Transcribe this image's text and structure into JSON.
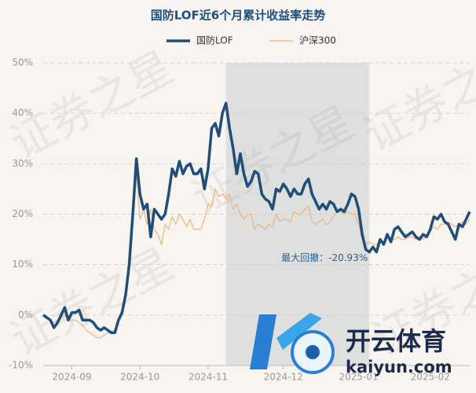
{
  "chart_data": {
    "type": "line",
    "title": "国防LOF近6个月累计收益率走势",
    "watermark": "证券之星",
    "logo_text": "开云体育",
    "logo_domain": "kaiyun.com",
    "annotation": "最大回撤：-20.93%",
    "categories": [
      null,
      null,
      null,
      null,
      null,
      null,
      null,
      null,
      "2024-09",
      null,
      null,
      null,
      null,
      null,
      null,
      null,
      null,
      null,
      null,
      null,
      null,
      null,
      null,
      null,
      null,
      null,
      null,
      "2024-10",
      null,
      null,
      null,
      null,
      null,
      null,
      null,
      null,
      null,
      null,
      null,
      null,
      null,
      null,
      null,
      null,
      null,
      null,
      "2024-11",
      null,
      null,
      null,
      null,
      null,
      null,
      null,
      null,
      null,
      null,
      null,
      null,
      null,
      null,
      null,
      null,
      null,
      null,
      null,
      null,
      "2024-12",
      null,
      null,
      null,
      null,
      null,
      null,
      null,
      null,
      null,
      null,
      null,
      null,
      null,
      null,
      null,
      null,
      null,
      null,
      null,
      null,
      "2025-01",
      null,
      null,
      null,
      null,
      null,
      null,
      null,
      null,
      null,
      null,
      null,
      null,
      null,
      null,
      null,
      null,
      null,
      null,
      null,
      "2025-02",
      null,
      null,
      null,
      null,
      null,
      null,
      null,
      null,
      null,
      null,
      null
    ],
    "series": [
      {
        "name": "国防LOF",
        "color": "#1f4e79",
        "values": [
          0,
          -0.5,
          -1,
          -2.5,
          -1.5,
          0,
          1.5,
          -1,
          0.5,
          0.5,
          1,
          -1,
          -1,
          -1,
          -1.5,
          -2.5,
          -3,
          -2.5,
          -3,
          -3.5,
          -3.5,
          -1,
          0.5,
          4,
          10,
          20,
          31,
          24,
          21,
          22,
          15.5,
          21,
          20,
          19,
          20,
          24,
          29,
          27.5,
          30.5,
          28,
          29.5,
          30,
          28,
          28,
          29,
          25,
          29,
          37,
          38,
          35.5,
          40,
          42,
          37,
          33,
          28,
          32,
          28,
          25.5,
          26.5,
          28.5,
          28,
          24,
          23,
          22.5,
          21,
          25,
          24.5,
          26,
          25,
          23.5,
          25,
          24,
          24,
          26,
          27,
          24,
          22.5,
          21,
          22,
          21,
          22.5,
          22,
          20.5,
          21,
          20.5,
          22,
          24,
          23.5,
          21,
          16,
          13,
          12.5,
          13.5,
          12.5,
          15,
          14,
          16,
          14.5,
          17,
          17.5,
          16.5,
          15.5,
          16,
          16.5,
          15.5,
          15,
          16,
          15.5,
          17,
          19.5,
          19,
          20,
          18.5,
          18,
          16.5,
          15,
          18,
          17.5,
          19,
          20.5
        ]
      },
      {
        "name": "沪深300",
        "color": "#f0b27a",
        "values": [
          0,
          -0.5,
          -1,
          -1.5,
          -1,
          -0.5,
          0,
          -1,
          -1,
          -1,
          -1.5,
          -2,
          -3,
          -3.5,
          -4,
          -4.5,
          -4.5,
          -4,
          -3.5,
          -3.5,
          -3,
          -1,
          1,
          5,
          9,
          18,
          28,
          19,
          21,
          18,
          21,
          17,
          16,
          14,
          18,
          17,
          19.5,
          18,
          20,
          19,
          17.5,
          19,
          17,
          17,
          17,
          19,
          22,
          21.5,
          25,
          23.5,
          24,
          23,
          24,
          21,
          22,
          20,
          19,
          20,
          20,
          17,
          18,
          17.5,
          17,
          18,
          17.5,
          20,
          18.5,
          19,
          19,
          18.5,
          20.5,
          20,
          20,
          21,
          21.5,
          18.5,
          18,
          18.5,
          19,
          18,
          18.5,
          19.5,
          20.5,
          20.5,
          20,
          20.5,
          20,
          20,
          18,
          15,
          14,
          14.5,
          14,
          14,
          15,
          14.5,
          15.5,
          15,
          15,
          15.5,
          15,
          15,
          15.5,
          15.5,
          15,
          15.5,
          15,
          16,
          16.5,
          17.5,
          17,
          18,
          18,
          18.5,
          18,
          17.5,
          18,
          18.5,
          18,
          19
        ]
      }
    ],
    "ylim": [
      -10,
      50
    ],
    "yticks": [
      {
        "value": -10,
        "label": "-10%"
      },
      {
        "value": 0,
        "label": "0%"
      },
      {
        "value": 10,
        "label": "10%"
      },
      {
        "value": 20,
        "label": "20%"
      },
      {
        "value": 30,
        "label": "30%"
      },
      {
        "value": 40,
        "label": "40%"
      },
      {
        "value": 50,
        "label": "50%"
      }
    ],
    "grid": true
  }
}
